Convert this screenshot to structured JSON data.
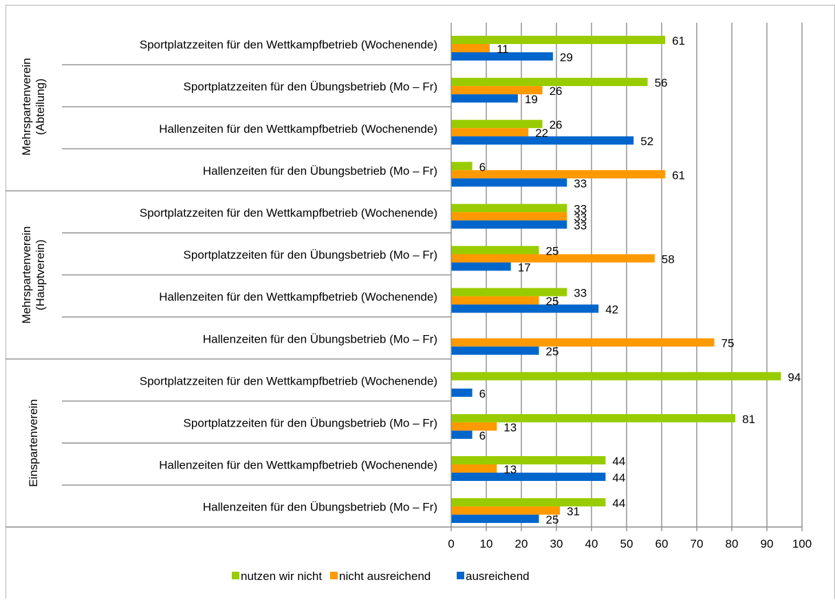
{
  "chart_data": {
    "type": "bar",
    "orientation": "horizontal",
    "title": "",
    "xlabel": "",
    "ylabel": "",
    "xlim": [
      0,
      100
    ],
    "x_ticks": [
      "0",
      "10",
      "20",
      "30",
      "40",
      "50",
      "60",
      "70",
      "80",
      "90",
      "100"
    ],
    "grid": "vertical",
    "legend_position": "bottom",
    "series": [
      {
        "name": "nutzen wir nicht",
        "color": "#99cc00"
      },
      {
        "name": "nicht ausreichend",
        "color": "#ff9900"
      },
      {
        "name": "ausreichend",
        "color": "#0066cc"
      }
    ],
    "groups": [
      {
        "label": "Mehrspartenverein (Abteilung)",
        "label_lines": [
          "Mehrspartenverein",
          "(Abteilung)"
        ],
        "categories": [
          {
            "label": "Sportplatzzeiten für den Wettkampfbetrieb (Wochenende)",
            "values": [
              61,
              11,
              29
            ]
          },
          {
            "label": "Sportplatzzeiten für den Übungsbetrieb (Mo – Fr)",
            "values": [
              56,
              26,
              19
            ]
          },
          {
            "label": "Hallenzeiten für den Wettkampfbetrieb (Wochenende)",
            "values": [
              26,
              22,
              52
            ]
          },
          {
            "label": "Hallenzeiten für den Übungsbetrieb (Mo – Fr)",
            "values": [
              6,
              61,
              33
            ]
          }
        ]
      },
      {
        "label": "Mehrspartenverein (Hauptverein)",
        "label_lines": [
          "Mehrspartenverein",
          "(Hauptverein)"
        ],
        "categories": [
          {
            "label": "Sportplatzzeiten für den Wettkampfbetrieb (Wochenende)",
            "values": [
              33,
              33,
              33
            ]
          },
          {
            "label": "Sportplatzzeiten für den Übungsbetrieb (Mo – Fr)",
            "values": [
              25,
              58,
              17
            ]
          },
          {
            "label": "Hallenzeiten für den Wettkampfbetrieb (Wochenende)",
            "values": [
              33,
              25,
              42
            ]
          },
          {
            "label": "Hallenzeiten für den Übungsbetrieb (Mo – Fr)",
            "values": [
              null,
              75,
              25
            ]
          }
        ]
      },
      {
        "label": "Einspartenverein",
        "label_lines": [
          "Einspartenverein"
        ],
        "categories": [
          {
            "label": "Sportplatzzeiten für den Wettkampfbetrieb (Wochenende)",
            "values": [
              94,
              null,
              6
            ]
          },
          {
            "label": "Sportplatzzeiten für den Übungsbetrieb (Mo – Fr)",
            "values": [
              81,
              13,
              6
            ]
          },
          {
            "label": "Hallenzeiten für den Wettkampfbetrieb (Wochenende)",
            "values": [
              44,
              13,
              44
            ]
          },
          {
            "label": "Hallenzeiten für den Übungsbetrieb (Mo – Fr)",
            "values": [
              44,
              31,
              25
            ]
          }
        ]
      }
    ]
  }
}
